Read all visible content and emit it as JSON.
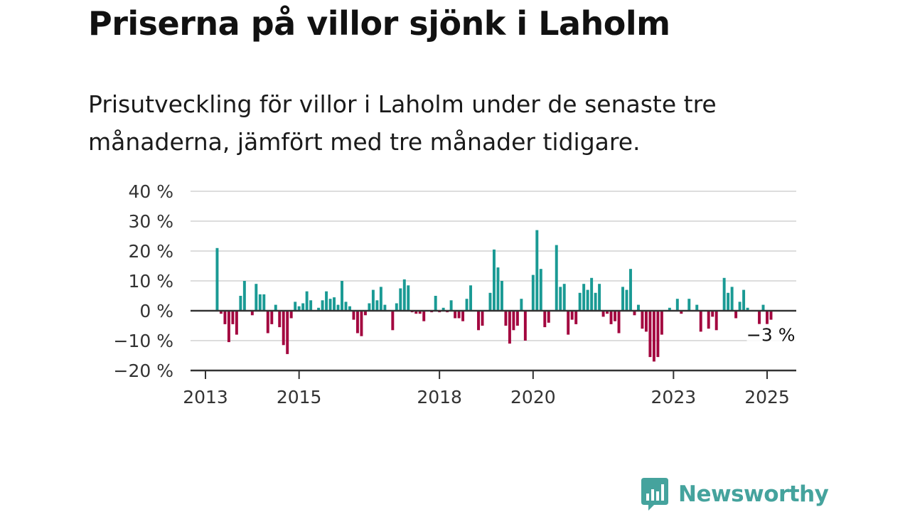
{
  "header": {
    "title": "Priserna på villor sjönk i Laholm",
    "subtitle": "Prisutveckling för villor i Laholm under de senaste tre månaderna, jämfört med tre månader tidigare."
  },
  "brand": {
    "name": "Newsworthy",
    "color": "#45a39d",
    "icon": "bar-chart-speech-bubble-icon"
  },
  "colors": {
    "positive": "#1a9a94",
    "negative": "#a3063f",
    "grid": "#dddddd",
    "axis": "#333333"
  },
  "chart_data": {
    "type": "bar",
    "x_unit": "month",
    "y_unit": "%",
    "ylim": [
      -20,
      40
    ],
    "y_ticks": [
      {
        "value": 40,
        "label": "40 %"
      },
      {
        "value": 30,
        "label": "30 %"
      },
      {
        "value": 20,
        "label": "20 %"
      },
      {
        "value": 10,
        "label": "10 %"
      },
      {
        "value": 0,
        "label": "0 %"
      },
      {
        "value": -10,
        "label": "−10 %"
      },
      {
        "value": -20,
        "label": "−20 %"
      }
    ],
    "x_ticks": [
      {
        "value": "2013-01",
        "label": "2013"
      },
      {
        "value": "2015-01",
        "label": "2015"
      },
      {
        "value": "2018-01",
        "label": "2018"
      },
      {
        "value": "2020-01",
        "label": "2020"
      },
      {
        "value": "2023-01",
        "label": "2023"
      },
      {
        "value": "2025-01",
        "label": "2025"
      }
    ],
    "grid": true,
    "first_period": "2013-04",
    "values": [
      21,
      -1,
      -4.5,
      -10.5,
      -4.5,
      -8,
      5,
      10,
      0,
      -1.5,
      9,
      5.5,
      5.5,
      -7.5,
      -4.5,
      2,
      -5.5,
      -11.5,
      -14.5,
      -2.5,
      3,
      1.5,
      2.5,
      6.5,
      3.5,
      0,
      1,
      3.5,
      6.5,
      4,
      4.5,
      2,
      10,
      3,
      1.5,
      -3,
      -7.5,
      -8.5,
      -1.5,
      2.5,
      7,
      3.5,
      8,
      2,
      0,
      -6.5,
      2.5,
      7.5,
      10.5,
      8.5,
      -0.5,
      -1,
      -1,
      -3.5,
      0,
      -0.5,
      5,
      -0.5,
      1,
      -0.5,
      3.5,
      -2.5,
      -2.5,
      -3.5,
      4,
      8.5,
      0,
      -6.5,
      -5,
      0,
      6,
      20.5,
      14.5,
      10,
      -5,
      -11,
      -6.5,
      -5,
      4,
      -10,
      0,
      12,
      27,
      14,
      -5.5,
      -4,
      0,
      22,
      8,
      9,
      -8,
      -3,
      -4.5,
      6,
      9,
      7,
      11,
      6,
      9,
      -2,
      -1,
      -4.5,
      -3.5,
      -7.5,
      8,
      7,
      14,
      -1.5,
      2,
      -6,
      -7,
      -15.5,
      -17,
      -15.5,
      -8,
      0,
      1,
      0,
      4,
      -1,
      0,
      4,
      0,
      2,
      -7,
      0,
      -6,
      -2,
      -6.5,
      0,
      11,
      6,
      8,
      -2.5,
      3,
      7,
      1,
      0,
      0,
      -4.5,
      2,
      -4.5,
      -3
    ],
    "annotations": [
      {
        "label": "−3 %",
        "for": "last"
      }
    ]
  }
}
